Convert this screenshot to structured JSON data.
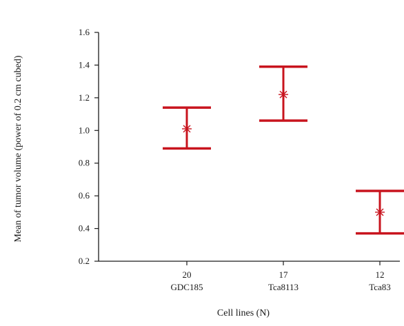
{
  "chart_data": {
    "type": "error-bar",
    "xlabel": "Cell lines (N)",
    "ylabel": "Mean of tumor volume (power of 0.2 cm cubed)",
    "ylim": [
      0.2,
      1.6
    ],
    "yticks": [
      "0.2",
      "0.4",
      "0.6",
      "0.8",
      "1.0",
      "1.2",
      "1.4",
      "1.6"
    ],
    "categories": [
      {
        "n": "20",
        "name": "GDC185",
        "mean": 1.01,
        "lower": 0.89,
        "upper": 1.14
      },
      {
        "n": "17",
        "name": "Tca8113",
        "mean": 1.22,
        "lower": 1.06,
        "upper": 1.39
      },
      {
        "n": "12",
        "name": "Tca83",
        "mean": 0.5,
        "lower": 0.37,
        "upper": 0.63
      }
    ],
    "color": "#c8141e",
    "grid": false,
    "legend": "none"
  }
}
